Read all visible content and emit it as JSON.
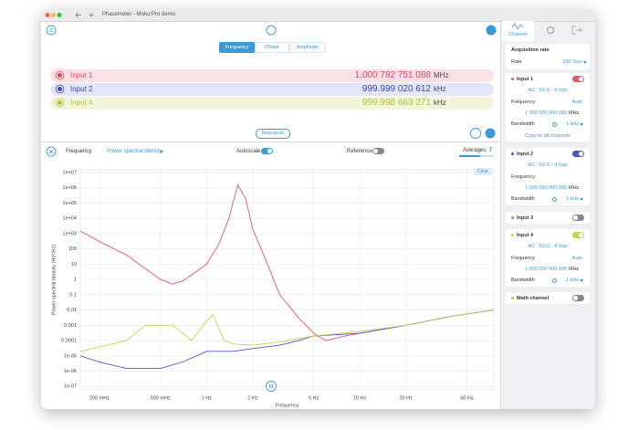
{
  "window": {
    "title": "Phasemeter - Moku:Pro demo"
  },
  "tabs": [
    "Frequency",
    "Phase",
    "Amplitude"
  ],
  "readings": [
    {
      "name": "Input 1",
      "value": "1.000 782 751 088",
      "unit": "MHz"
    },
    {
      "name": "Input 2",
      "value": "999.999 020 612",
      "unit": "kHz"
    },
    {
      "name": "Input 4",
      "value": "999.998 663 271",
      "unit": "kHz"
    }
  ],
  "reacquire": "Reacquire",
  "toolbar": {
    "measure": "Frequency",
    "mode": "Power spectral density",
    "autoscale": "Autoscale",
    "reference": "Reference",
    "averages": "Averages: 7"
  },
  "clear": "Clear",
  "chart_data": {
    "type": "line",
    "xlabel": "Frequency",
    "ylabel": "Power spectral density (Hz²/Hz)",
    "xscale": "log",
    "yscale": "log",
    "grid": true,
    "xlim": [
      0.15,
      75
    ],
    "ylim": [
      6e-08,
      15000000.0
    ],
    "xticks": [
      {
        "value": 0.2,
        "label": "200 mHz"
      },
      {
        "value": 0.5,
        "label": "500 mHz"
      },
      {
        "value": 1,
        "label": "1 Hz"
      },
      {
        "value": 2,
        "label": "2 Hz"
      },
      {
        "value": 5,
        "label": "5 Hz"
      },
      {
        "value": 10,
        "label": "10 Hz"
      },
      {
        "value": 20,
        "label": "20 Hz"
      },
      {
        "value": 50,
        "label": "50 Hz"
      }
    ],
    "yticks": [
      {
        "value": 10000000,
        "label": "1e+07"
      },
      {
        "value": 1000000,
        "label": "1e+06"
      },
      {
        "value": 100000,
        "label": "1e+05"
      },
      {
        "value": 10000,
        "label": "1e+04"
      },
      {
        "value": 1000,
        "label": "1e+03"
      },
      100,
      10,
      1,
      0.1,
      0.01,
      0.001,
      0.0001,
      {
        "value": 1e-05,
        "label": "1e-05"
      },
      {
        "value": 1e-06,
        "label": "1e-06"
      },
      {
        "value": 1e-07,
        "label": "1e-07"
      }
    ],
    "series": [
      {
        "color": "#e8546a",
        "x": [
          0.15,
          0.2,
          0.3,
          0.4,
          0.5,
          0.6,
          0.7,
          0.8,
          1,
          1.2,
          1.4,
          1.6,
          1.8,
          2,
          2.5,
          3,
          4,
          5,
          6,
          8,
          10,
          20,
          40,
          75
        ],
        "values": [
          1500,
          300,
          40,
          5,
          1,
          0.5,
          0.8,
          2,
          10,
          200,
          10000,
          1500000,
          200000,
          2000,
          10,
          0.1,
          0.003,
          0.0003,
          0.0001,
          0.0002,
          0.0003,
          0.001,
          0.004,
          0.01
        ]
      },
      {
        "color": "#4a55d6",
        "x": [
          0.15,
          0.2,
          0.3,
          0.5,
          0.7,
          1,
          1.5,
          2,
          3,
          4,
          5,
          10,
          20,
          40,
          75
        ],
        "values": [
          1e-05,
          4e-06,
          1.5e-06,
          1.5e-06,
          4e-06,
          2e-05,
          2e-05,
          3e-05,
          5e-05,
          0.0001,
          0.0002,
          0.0003,
          0.001,
          0.004,
          0.01
        ]
      },
      {
        "color": "#c8cf55",
        "x": [
          0.15,
          0.3,
          0.4,
          0.6,
          0.8,
          1,
          1.1,
          1.3,
          1.5,
          2,
          3,
          5,
          10,
          20,
          40,
          75
        ],
        "values": [
          2e-05,
          0.0001,
          0.001,
          0.001,
          0.0001,
          0.002,
          0.005,
          0.0001,
          6e-05,
          5e-05,
          8e-05,
          0.0002,
          0.0004,
          0.001,
          0.004,
          0.01
        ]
      }
    ]
  },
  "panel": {
    "tab": "Channel",
    "acquisition": {
      "title": "Acquisition rate",
      "rate_label": "Rate",
      "rate": "150 Sa/s"
    },
    "channels": [
      {
        "name": "Input 1",
        "coupling": "AC : 50 Ω : 4 Vpp",
        "frequency_label": "Frequency",
        "frequency_mode": "Auto",
        "frequency": "1.000 000 000 000",
        "unit": "MHz",
        "bandwidth_label": "Bandwidth",
        "bandwidth": "1 kHz",
        "copy": "Copy to all channels"
      },
      {
        "name": "Input 2",
        "coupling": "AC : 50 Ω : 4 Vpp",
        "frequency_label": "Frequency",
        "frequency": "1.000 000 000 000",
        "unit": "MHz",
        "bandwidth_label": "Bandwidth",
        "bandwidth": "1 kHz"
      },
      {
        "name": "Input 3"
      },
      {
        "name": "Input 4",
        "coupling": "AC : 50 Ω : 4 Vpp",
        "frequency_label": "Frequency",
        "frequency_mode": "Auto",
        "frequency": "1.000 000 000 000",
        "unit": "MHz",
        "bandwidth_label": "Bandwidth",
        "bandwidth": "1 kHz"
      },
      {
        "name": "Math channel"
      }
    ]
  }
}
